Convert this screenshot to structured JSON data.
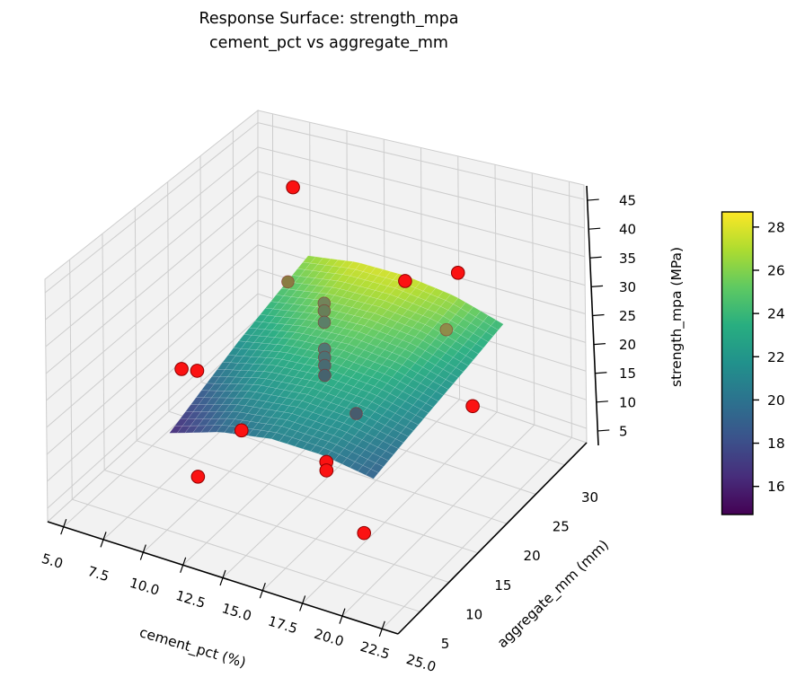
{
  "title": {
    "line1": "Response Surface: strength_mpa",
    "line2": "cement_pct vs aggregate_mm"
  },
  "chart_data": {
    "type": "scatter",
    "subtype": "3d_response_surface_with_scatter",
    "title": "Response Surface: strength_mpa — cement_pct vs aggregate_mm",
    "grid": true,
    "axes": {
      "x": {
        "label": "cement_pct (%)",
        "ticks": [
          5,
          7.5,
          10,
          12.5,
          15,
          17.5,
          20,
          22.5,
          25
        ],
        "tick_labels": [
          "5.0",
          "7.5",
          "10.0",
          "12.5",
          "15.0",
          "17.5",
          "20.0",
          "22.5",
          "25.0"
        ],
        "range": [
          5,
          25
        ]
      },
      "y": {
        "label": "aggregate_mm (mm)",
        "ticks": [
          5,
          10,
          15,
          20,
          25,
          30
        ],
        "tick_labels": [
          "5",
          "10",
          "15",
          "20",
          "25",
          "30"
        ],
        "range": [
          5,
          30
        ]
      },
      "z": {
        "label": "strength_mpa (MPa)",
        "ticks": [
          5,
          10,
          15,
          20,
          25,
          30,
          35,
          40,
          45
        ],
        "tick_labels": [
          "5",
          "10",
          "15",
          "20",
          "25",
          "30",
          "35",
          "40",
          "45"
        ],
        "range": [
          5,
          45
        ]
      }
    },
    "points": [
      {
        "cement_pct": 8.0,
        "aggregate_mm": 30,
        "strength_mpa": 39.0,
        "occluded": false
      },
      {
        "cement_pct": 17.5,
        "aggregate_mm": 25,
        "strength_mpa": 33.5,
        "occluded": false
      },
      {
        "cement_pct": 21.0,
        "aggregate_mm": 25,
        "strength_mpa": 37.5,
        "occluded": false
      },
      {
        "cement_pct": 9.0,
        "aggregate_mm": 10,
        "strength_mpa": 26.0,
        "occluded": false
      },
      {
        "cement_pct": 10.0,
        "aggregate_mm": 10,
        "strength_mpa": 26.5,
        "occluded": false
      },
      {
        "cement_pct": 14.0,
        "aggregate_mm": 7,
        "strength_mpa": 22.0,
        "occluded": false
      },
      {
        "cement_pct": 12.0,
        "aggregate_mm": 5,
        "strength_mpa": 14.0,
        "occluded": false
      },
      {
        "cement_pct": 19.0,
        "aggregate_mm": 8,
        "strength_mpa": 19.5,
        "occluded": false
      },
      {
        "cement_pct": 19.0,
        "aggregate_mm": 8,
        "strength_mpa": 18.0,
        "occluded": false
      },
      {
        "cement_pct": 22.5,
        "aggregate_mm": 5,
        "strength_mpa": 13.0,
        "occluded": false
      },
      {
        "cement_pct": 25.0,
        "aggregate_mm": 17,
        "strength_mpa": 25.0,
        "occluded": false
      },
      {
        "cement_pct": 11.0,
        "aggregate_mm": 22,
        "strength_mpa": 31.5,
        "occluded": true,
        "tint": "#8a7c42"
      },
      {
        "cement_pct": 15.0,
        "aggregate_mm": 18,
        "strength_mpa": 34.7,
        "occluded": true,
        "tint": "#72845a"
      },
      {
        "cement_pct": 15.0,
        "aggregate_mm": 18,
        "strength_mpa": 33.3,
        "occluded": true,
        "tint": "#688059"
      },
      {
        "cement_pct": 15.0,
        "aggregate_mm": 18,
        "strength_mpa": 31.2,
        "occluded": true,
        "tint": "#5b8068"
      },
      {
        "cement_pct": 15.0,
        "aggregate_mm": 18,
        "strength_mpa": 26.3,
        "occluded": true,
        "tint": "#4f7874"
      },
      {
        "cement_pct": 15.0,
        "aggregate_mm": 18,
        "strength_mpa": 24.8,
        "occluded": true,
        "tint": "#4c7274"
      },
      {
        "cement_pct": 15.0,
        "aggregate_mm": 18,
        "strength_mpa": 23.3,
        "occluded": true,
        "tint": "#486b72"
      },
      {
        "cement_pct": 15.0,
        "aggregate_mm": 18,
        "strength_mpa": 21.5,
        "occluded": true,
        "tint": "#46636e"
      },
      {
        "cement_pct": 19.0,
        "aggregate_mm": 13,
        "strength_mpa": 23.0,
        "occluded": true,
        "tint": "#475c6e"
      },
      {
        "cement_pct": 19.0,
        "aggregate_mm": 28,
        "strength_mpa": 22.7,
        "occluded": true,
        "tint": "#8f8c4a"
      }
    ],
    "surface": {
      "cement_pct": [
        9,
        12.25,
        15.5,
        18.75,
        22
      ],
      "aggregate_mm": [
        8,
        13.5,
        19,
        24.5,
        30
      ],
      "strength_mpa": [
        [
          16.2,
          19.2,
          20.7,
          20.5,
          19.0
        ],
        [
          19.0,
          21.6,
          22.5,
          22.0,
          20.3
        ],
        [
          21.8,
          23.7,
          24.3,
          23.5,
          21.5
        ],
        [
          24.1,
          25.7,
          26.0,
          25.1,
          22.7
        ],
        [
          26.4,
          27.8,
          27.8,
          26.6,
          24.0
        ]
      ]
    },
    "colorbar": {
      "ticks": [
        16,
        18,
        20,
        22,
        24,
        26,
        28
      ],
      "vmin": 14.7,
      "vmax": 28.7,
      "colormap": "viridis",
      "stops": [
        "#440154",
        "#472d7b",
        "#3b528b",
        "#2c728e",
        "#21918c",
        "#28ae80",
        "#5ec962",
        "#addc30",
        "#fde725"
      ]
    }
  },
  "colors": {
    "point": "#fb1212",
    "point_edge": "#8f0000",
    "pane": "#f2f2f2",
    "grid_line": "#cdcdcd",
    "axis_line": "#000000",
    "background": "#ffffff",
    "text": "#000000"
  }
}
